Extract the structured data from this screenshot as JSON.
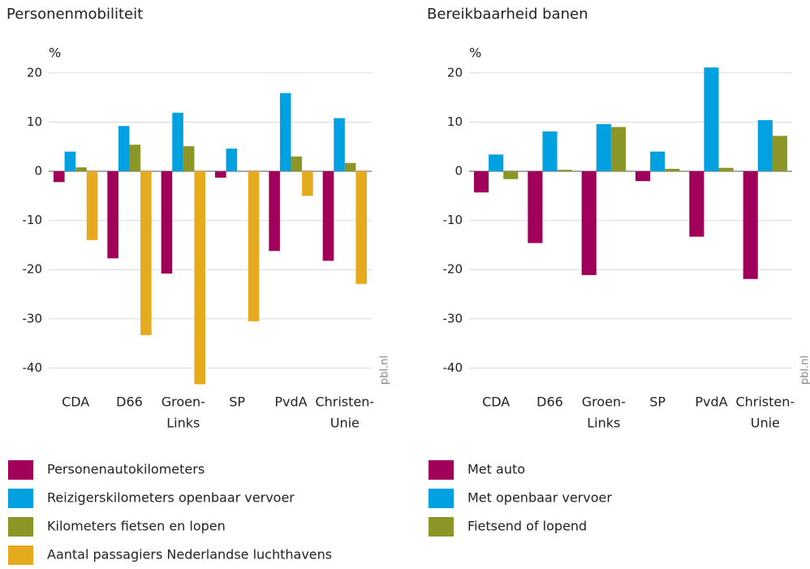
{
  "chart_data": [
    {
      "type": "bar",
      "title": "Personenmobiliteit",
      "y_label": "%",
      "source": "pbl.nl",
      "categories": [
        [
          "CDA"
        ],
        [
          "D66"
        ],
        [
          "Groen-",
          "Links"
        ],
        [
          "SP"
        ],
        [
          "PvdA"
        ],
        [
          "Christen-",
          "Unie"
        ]
      ],
      "series": [
        {
          "name": "Personenautokilometers",
          "color": "#a0005a",
          "values": [
            -2.2,
            -17.7,
            -20.8,
            -1.3,
            -16.2,
            -18.2
          ]
        },
        {
          "name": "Reizigerskilometers openbaar vervoer",
          "color": "#00a0e1",
          "values": [
            4,
            9.2,
            11.9,
            4.6,
            15.9,
            10.8
          ]
        },
        {
          "name": "Kilometers fietsen en lopen",
          "color": "#8c9626",
          "values": [
            0.8,
            5.4,
            5.1,
            0,
            3,
            1.7
          ]
        },
        {
          "name": "Aantal passagiers Nederlandse luchthavens",
          "color": "#e6aa1e",
          "values": [
            -14,
            -33.3,
            -43.3,
            -30.5,
            -5,
            -22.9
          ]
        }
      ],
      "ylim": [
        -43.3,
        22
      ],
      "yticks": [
        -40,
        -30,
        -20,
        -10,
        0,
        10,
        20
      ],
      "grid": true
    },
    {
      "type": "bar",
      "title": "Bereikbaarheid banen",
      "y_label": "%",
      "source": "pbl.nl",
      "categories": [
        [
          "CDA"
        ],
        [
          "D66"
        ],
        [
          "Groen-",
          "Links"
        ],
        [
          "SP"
        ],
        [
          "PvdA"
        ],
        [
          "Christen-",
          "Unie"
        ]
      ],
      "series": [
        {
          "name": "Met auto",
          "color": "#a0005a",
          "values": [
            -4.3,
            -14.6,
            -21.1,
            -2,
            -13.3,
            -21.9
          ]
        },
        {
          "name": "Met openbaar vervoer",
          "color": "#00a0e1",
          "values": [
            3.4,
            8.1,
            9.6,
            4,
            21.1,
            10.4
          ]
        },
        {
          "name": "Fietsend of lopend",
          "color": "#8c9626",
          "values": [
            -1.6,
            0.3,
            9,
            0.5,
            0.7,
            7.2
          ]
        }
      ],
      "ylim": [
        -43.3,
        22
      ],
      "yticks": [
        -40,
        -30,
        -20,
        -10,
        0,
        10,
        20
      ],
      "grid": true
    }
  ]
}
